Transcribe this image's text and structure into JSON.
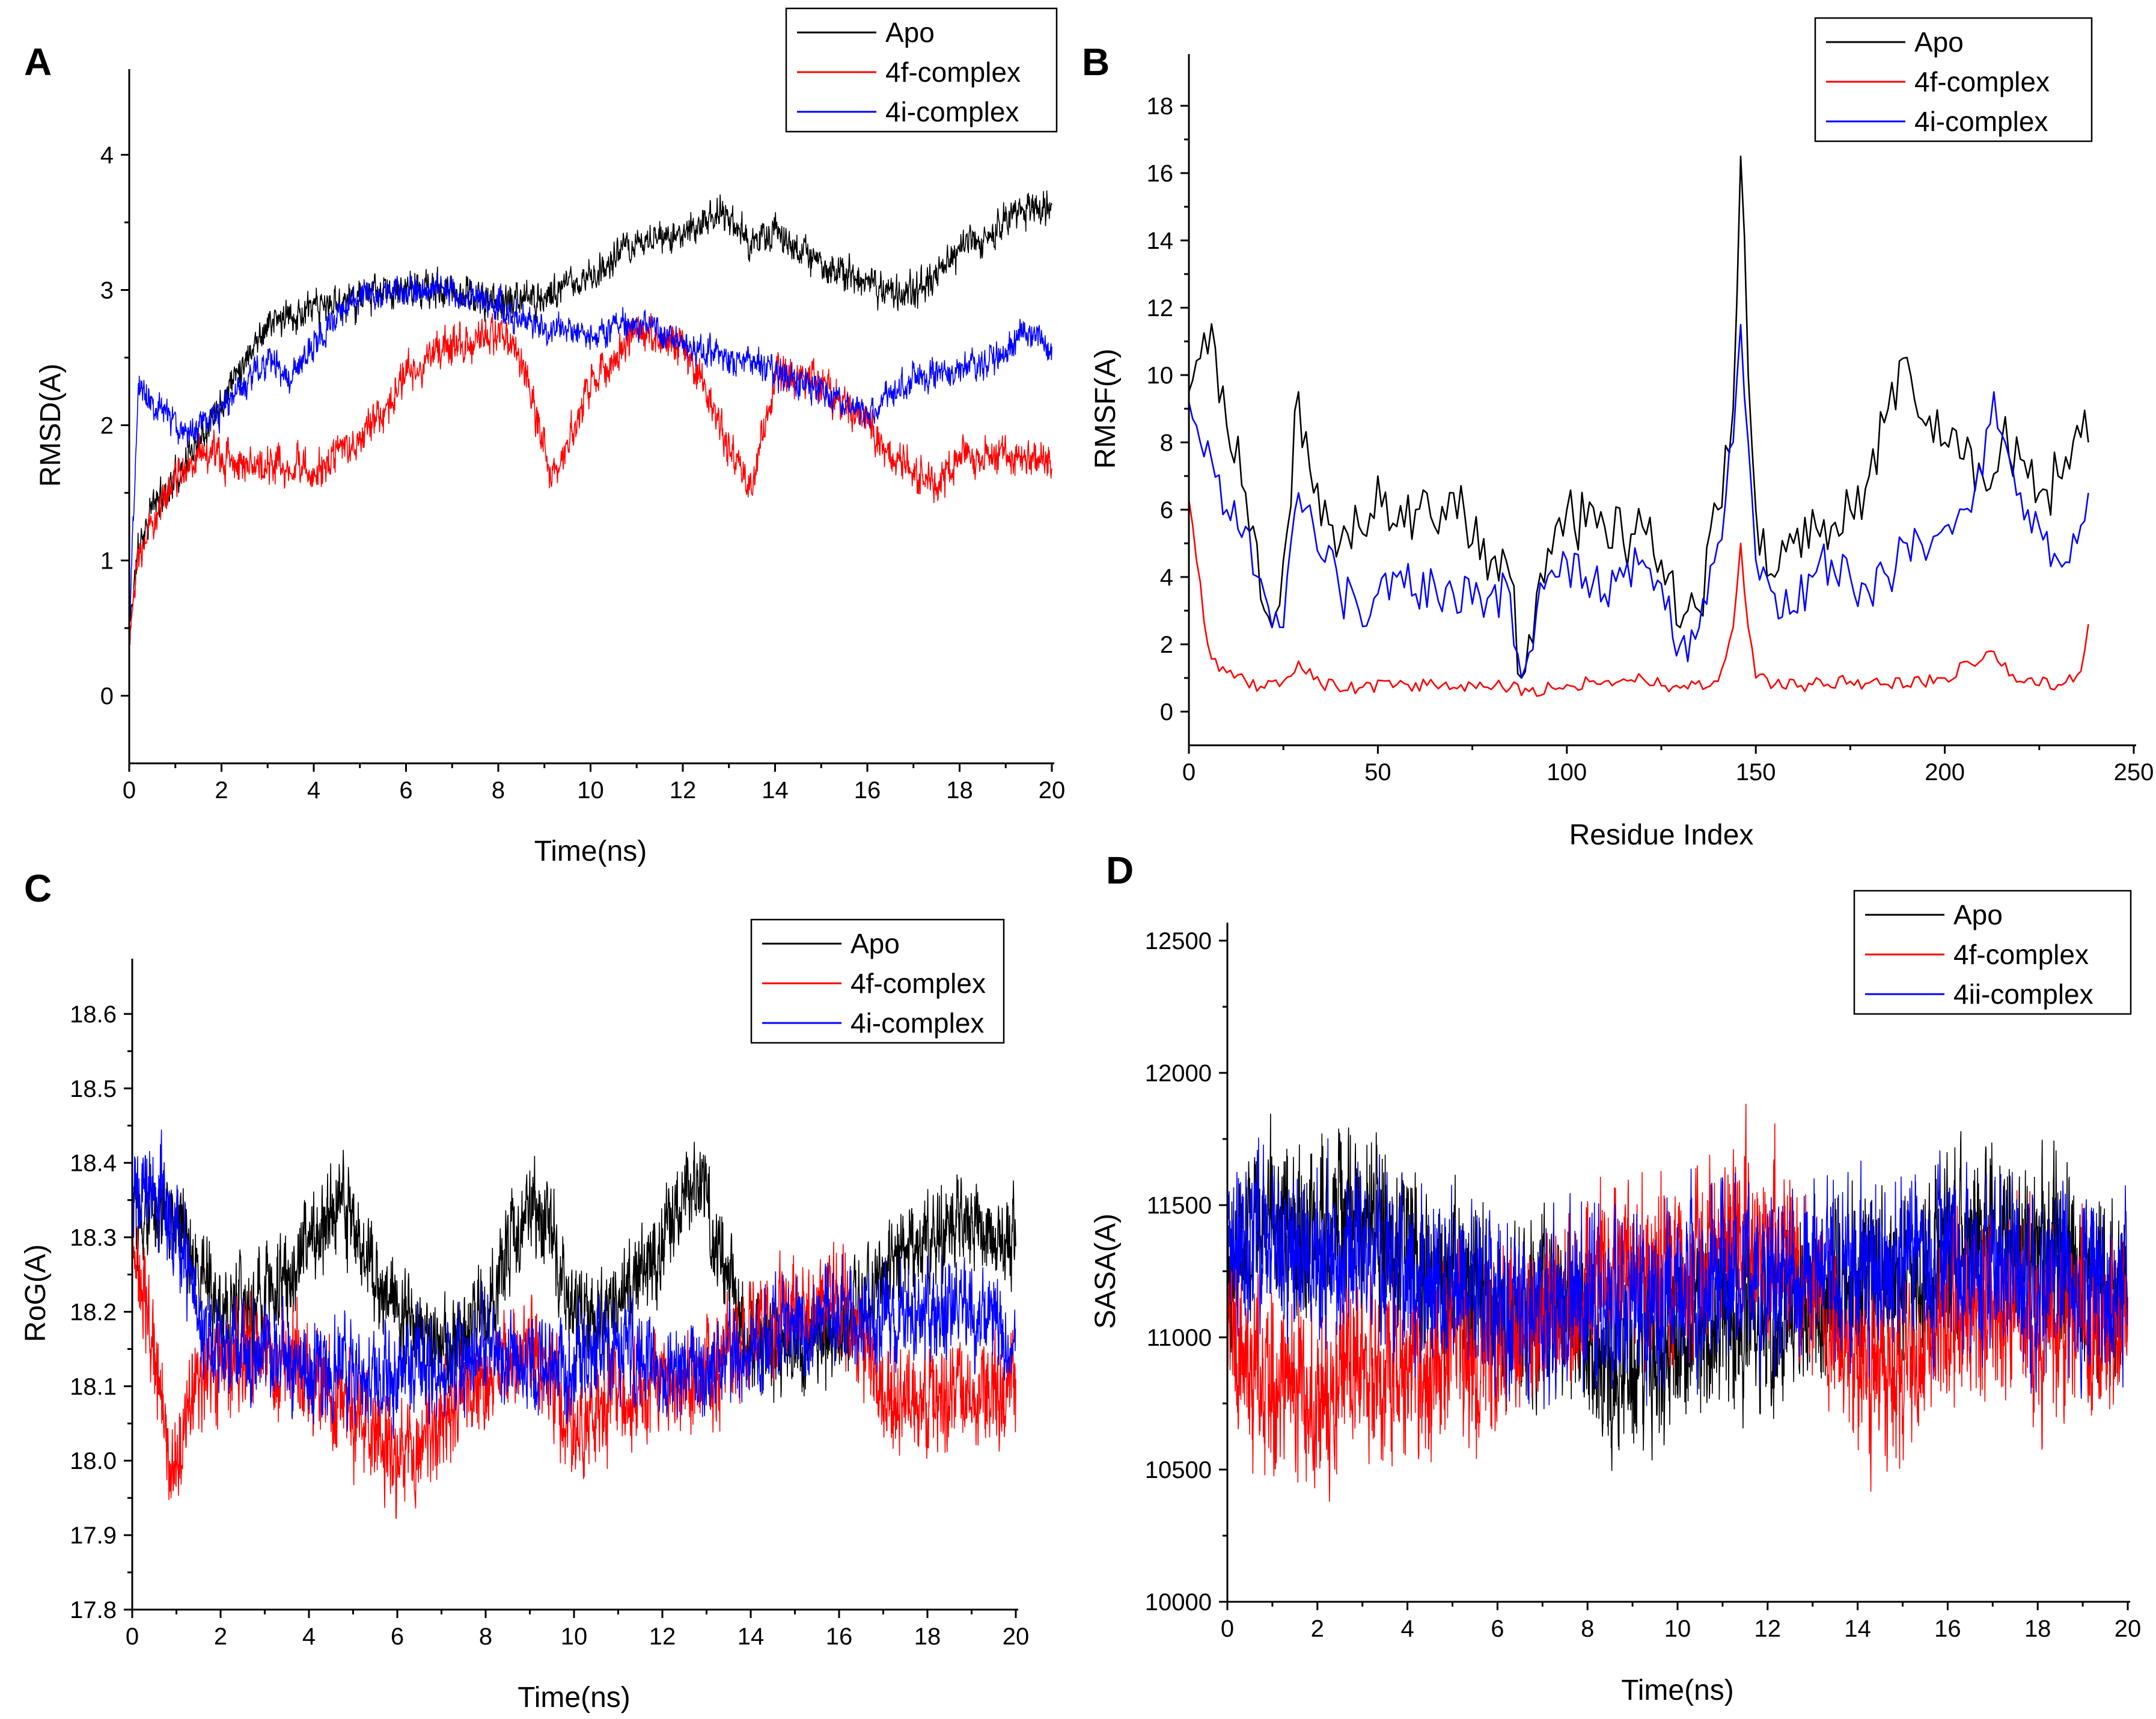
{
  "figure": {
    "panels": [
      "A",
      "B",
      "C",
      "D"
    ]
  },
  "chart_data": [
    {
      "panel": "A",
      "type": "line",
      "title": "",
      "xlabel": "Time(ns)",
      "ylabel": "RMSD(A)",
      "xlim": [
        0,
        20
      ],
      "ylim": [
        -0.5,
        4.5
      ],
      "xticks": [
        0,
        2,
        4,
        6,
        8,
        10,
        12,
        14,
        16,
        18,
        20
      ],
      "yticks": [
        0,
        1,
        2,
        3,
        4
      ],
      "legend": {
        "placement": "top-right",
        "entries": [
          "Apo",
          "4f-complex",
          "4i-complex"
        ]
      },
      "style": "noisy-trajectory",
      "series": [
        {
          "name": "Apo",
          "color": "#000000",
          "seed": 11,
          "noise": 0.09,
          "x": [
            0,
            0.2,
            0.5,
            1,
            1.5,
            2,
            2.5,
            3,
            3.5,
            4,
            5,
            6,
            7,
            8,
            9,
            10,
            11,
            12,
            12.8,
            13.5,
            14,
            15,
            16,
            17,
            17.5,
            18,
            19,
            19.5,
            20
          ],
          "y": [
            0.5,
            1.1,
            1.4,
            1.6,
            1.9,
            2.2,
            2.5,
            2.75,
            2.8,
            2.85,
            2.95,
            3.0,
            3.0,
            2.9,
            2.95,
            3.1,
            3.35,
            3.4,
            3.6,
            3.35,
            3.4,
            3.2,
            3.05,
            2.95,
            3.1,
            3.3,
            3.5,
            3.6,
            3.65
          ]
        },
        {
          "name": "4f-complex",
          "color": "#ff0000",
          "seed": 23,
          "noise": 0.1,
          "x": [
            0,
            0.2,
            0.5,
            1,
            1.5,
            2,
            3,
            4,
            5,
            5.5,
            6,
            6.5,
            7,
            8,
            8.5,
            9.2,
            10,
            11,
            12,
            12.8,
            13.5,
            14,
            15,
            16,
            16.5,
            17.5,
            18,
            19,
            20
          ],
          "y": [
            0.4,
            1.0,
            1.3,
            1.6,
            1.8,
            1.75,
            1.7,
            1.65,
            1.9,
            2.1,
            2.4,
            2.5,
            2.6,
            2.7,
            2.5,
            1.6,
            2.3,
            2.7,
            2.6,
            2.0,
            1.5,
            2.4,
            2.3,
            2.0,
            1.75,
            1.55,
            1.75,
            1.75,
            1.75
          ]
        },
        {
          "name": "4i-complex",
          "color": "#0000ff",
          "seed": 37,
          "noise": 0.08,
          "x": [
            0,
            0.2,
            0.5,
            1,
            1.5,
            2,
            3,
            3.5,
            4,
            4.5,
            5,
            6,
            7,
            8,
            9,
            10,
            11,
            12,
            13,
            14,
            15,
            16,
            16.5,
            17,
            18,
            19,
            19.5,
            20
          ],
          "y": [
            0.5,
            2.3,
            2.2,
            2.0,
            1.95,
            2.1,
            2.5,
            2.35,
            2.6,
            2.8,
            2.95,
            3.0,
            3.0,
            2.9,
            2.7,
            2.7,
            2.75,
            2.6,
            2.5,
            2.4,
            2.25,
            2.05,
            2.25,
            2.35,
            2.4,
            2.55,
            2.7,
            2.55
          ]
        }
      ]
    },
    {
      "panel": "B",
      "type": "line",
      "title": "",
      "xlabel": "Residue Index",
      "ylabel": "RMSF(A)",
      "xlim": [
        0,
        250
      ],
      "ylim": [
        -1,
        19
      ],
      "xticks": [
        0,
        50,
        100,
        150,
        200,
        250
      ],
      "yticks": [
        0,
        2,
        4,
        6,
        8,
        10,
        12,
        14,
        16,
        18
      ],
      "legend": {
        "placement": "top-right",
        "entries": [
          "Apo",
          "4f-complex",
          "4i-complex"
        ]
      },
      "style": "jagged-profile",
      "series": [
        {
          "name": "Apo",
          "color": "#000000",
          "seed": 41,
          "noise": 1.2,
          "x": [
            0,
            3,
            7,
            10,
            15,
            20,
            22,
            25,
            29,
            33,
            40,
            45,
            50,
            55,
            60,
            65,
            70,
            75,
            80,
            85,
            88,
            92,
            97,
            100,
            105,
            110,
            115,
            120,
            125,
            130,
            135,
            140,
            144,
            146,
            148,
            150,
            155,
            160,
            165,
            170,
            175,
            180,
            185,
            189,
            195,
            200,
            205,
            210,
            215,
            220,
            225,
            230,
            235,
            238
          ],
          "y": [
            9.5,
            10.5,
            10.8,
            8.5,
            6.5,
            3.0,
            2.5,
            4.5,
            9.5,
            6.5,
            5.0,
            5.5,
            7.0,
            5.5,
            6.0,
            5.5,
            6.5,
            5.0,
            4.5,
            4.0,
            1.0,
            3.5,
            5.5,
            6.0,
            5.5,
            5.5,
            5.0,
            5.5,
            4.5,
            2.5,
            3.0,
            6.0,
            9.0,
            16.5,
            10.0,
            6.0,
            4.0,
            5.0,
            6.0,
            5.5,
            6.0,
            7.0,
            9.0,
            10.5,
            8.5,
            8.0,
            7.5,
            7.0,
            8.0,
            7.5,
            6.5,
            7.0,
            8.5,
            8.0
          ]
        },
        {
          "name": "4f-complex",
          "color": "#ff0000",
          "seed": 53,
          "noise": 0.25,
          "x": [
            0,
            2,
            5,
            8,
            12,
            20,
            25,
            29,
            35,
            45,
            55,
            65,
            75,
            85,
            90,
            100,
            110,
            120,
            130,
            140,
            144,
            146,
            148,
            150,
            155,
            165,
            175,
            185,
            200,
            212,
            220,
            230,
            236,
            238
          ],
          "y": [
            6.3,
            4.5,
            2.0,
            1.2,
            1.0,
            0.7,
            0.9,
            1.5,
            0.8,
            0.7,
            0.8,
            0.8,
            0.8,
            0.7,
            0.6,
            0.8,
            0.9,
            1.0,
            0.7,
            0.9,
            2.5,
            5.0,
            2.5,
            1.0,
            0.8,
            0.8,
            0.9,
            0.8,
            1.0,
            1.8,
            0.9,
            0.8,
            1.2,
            2.6
          ]
        },
        {
          "name": "4i-complex",
          "color": "#0000ff",
          "seed": 67,
          "noise": 0.9,
          "x": [
            0,
            3,
            6,
            10,
            15,
            20,
            25,
            29,
            33,
            40,
            45,
            50,
            55,
            60,
            65,
            70,
            75,
            80,
            85,
            88,
            92,
            97,
            100,
            105,
            110,
            115,
            120,
            125,
            130,
            135,
            140,
            144,
            146,
            148,
            150,
            155,
            160,
            165,
            170,
            175,
            180,
            185,
            190,
            195,
            200,
            205,
            210,
            213,
            216,
            220,
            225,
            230,
            235,
            238
          ],
          "y": [
            9.2,
            8.0,
            7.5,
            6.0,
            5.5,
            3.5,
            2.5,
            6.5,
            5.5,
            3.5,
            3.0,
            3.5,
            4.0,
            3.5,
            3.8,
            3.5,
            3.2,
            3.5,
            3.5,
            1.0,
            3.0,
            4.0,
            4.5,
            4.0,
            3.5,
            4.0,
            4.5,
            3.8,
            2.0,
            2.5,
            5.0,
            8.0,
            11.5,
            8.0,
            4.5,
            3.5,
            3.0,
            4.0,
            4.5,
            4.0,
            3.5,
            4.0,
            5.0,
            4.5,
            5.5,
            6.0,
            7.0,
            9.5,
            8.0,
            6.5,
            5.5,
            4.5,
            5.0,
            6.5
          ]
        }
      ]
    },
    {
      "panel": "C",
      "type": "line",
      "title": "",
      "xlabel": "Time(ns)",
      "ylabel": "RoG(A)",
      "xlim": [
        0,
        20
      ],
      "ylim": [
        17.8,
        18.65
      ],
      "xticks": [
        0,
        2,
        4,
        6,
        8,
        10,
        12,
        14,
        16,
        18,
        20
      ],
      "yticks": [
        17.8,
        17.9,
        18.0,
        18.1,
        18.2,
        18.3,
        18.4,
        18.5,
        18.6
      ],
      "legend": {
        "placement": "top-right",
        "entries": [
          "Apo",
          "4f-complex",
          "4i-complex"
        ]
      },
      "style": "noisy-trajectory",
      "series": [
        {
          "name": "Apo",
          "color": "#000000",
          "seed": 71,
          "noise": 0.045,
          "x": [
            0,
            1,
            1.5,
            2,
            3,
            4,
            4.7,
            5.5,
            6,
            7,
            8,
            9,
            9.5,
            10,
            11,
            12,
            12.8,
            13.5,
            14,
            15,
            16,
            17,
            18,
            19,
            20
          ],
          "y": [
            18.33,
            18.32,
            18.25,
            18.2,
            18.22,
            18.3,
            18.35,
            18.25,
            18.2,
            18.15,
            18.2,
            18.35,
            18.3,
            18.2,
            18.2,
            18.3,
            18.38,
            18.25,
            18.15,
            18.15,
            18.18,
            18.25,
            18.3,
            18.33,
            18.28
          ]
        },
        {
          "name": "4f-complex",
          "color": "#ff0000",
          "seed": 83,
          "noise": 0.05,
          "x": [
            0,
            0.5,
            0.9,
            1.5,
            2,
            3,
            4,
            5,
            6,
            7,
            8,
            9,
            10,
            11,
            12,
            13,
            14,
            15,
            16,
            17,
            18,
            19,
            20
          ],
          "y": [
            18.3,
            18.15,
            17.98,
            18.1,
            18.12,
            18.15,
            18.12,
            18.05,
            18.0,
            18.05,
            18.1,
            18.15,
            18.05,
            18.08,
            18.1,
            18.12,
            18.18,
            18.2,
            18.22,
            18.1,
            18.08,
            18.1,
            18.1
          ]
        },
        {
          "name": "4i-complex",
          "color": "#0000ff",
          "seed": 97,
          "noise": 0.045,
          "x": [
            0,
            0.5,
            1,
            1.5,
            2,
            3,
            4,
            5,
            6,
            7,
            8,
            9,
            10,
            11,
            12,
            13,
            14,
            15,
            16,
            17,
            18,
            19,
            20
          ],
          "y": [
            18.35,
            18.38,
            18.3,
            18.2,
            18.15,
            18.15,
            18.12,
            18.12,
            18.12,
            18.12,
            18.15,
            18.12,
            18.12,
            18.15,
            18.12,
            18.13,
            18.15,
            18.18,
            18.2,
            18.2,
            18.2,
            18.2,
            18.15
          ]
        }
      ]
    },
    {
      "panel": "D",
      "type": "line",
      "title": "",
      "xlabel": "Time(ns)",
      "ylabel": "SASA(A)",
      "xlim": [
        0,
        20
      ],
      "ylim": [
        10000,
        12500
      ],
      "xticks": [
        0,
        2,
        4,
        6,
        8,
        10,
        12,
        14,
        16,
        18,
        20
      ],
      "yticks": [
        10000,
        10500,
        11000,
        11500,
        12000,
        12500
      ],
      "legend": {
        "placement": "top-right",
        "entries": [
          "Apo",
          "4f-complex",
          "4ii-complex"
        ]
      },
      "style": "noisy-trajectory",
      "series": [
        {
          "name": "Apo",
          "color": "#000000",
          "seed": 101,
          "noise": 230,
          "x": [
            0,
            1,
            2,
            3,
            4,
            5,
            6,
            7,
            8,
            9,
            10,
            11,
            12,
            13,
            14,
            15,
            16,
            17,
            18,
            19,
            20
          ],
          "y": [
            11300,
            11500,
            11400,
            11450,
            11300,
            11200,
            11100,
            11100,
            11000,
            10850,
            10950,
            11100,
            11050,
            11150,
            11200,
            11250,
            11300,
            11400,
            11350,
            11250,
            11150
          ]
        },
        {
          "name": "4f-complex",
          "color": "#ff0000",
          "seed": 113,
          "noise": 230,
          "x": [
            0,
            1,
            2,
            3,
            4,
            5,
            6,
            7,
            8,
            9,
            10,
            11,
            12,
            13,
            14,
            15,
            16,
            17,
            18,
            19,
            20
          ],
          "y": [
            11000,
            10850,
            10750,
            10900,
            10850,
            10950,
            10950,
            11050,
            11150,
            11300,
            11250,
            11350,
            11400,
            11200,
            10900,
            10850,
            11050,
            11150,
            11050,
            11100,
            11000
          ]
        },
        {
          "name": "4ii-complex",
          "color": "#0000ff",
          "seed": 127,
          "noise": 220,
          "x": [
            0,
            1,
            2,
            3,
            4,
            5,
            6,
            7,
            8,
            9,
            10,
            11,
            12,
            13,
            14,
            15,
            16,
            17,
            18,
            19,
            20
          ],
          "y": [
            11300,
            11350,
            11300,
            11350,
            11250,
            11200,
            11150,
            11100,
            11150,
            11100,
            11150,
            11250,
            11200,
            11250,
            11250,
            11300,
            11300,
            11250,
            11250,
            11200,
            11150
          ]
        }
      ]
    }
  ]
}
